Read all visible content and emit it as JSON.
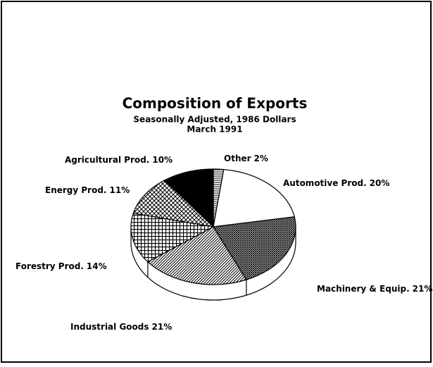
{
  "chart_data": {
    "type": "pie",
    "title": "Composition of Exports",
    "subtitle": [
      "Seasonally Adjusted, 1986 Dollars",
      "March 1991"
    ],
    "categories": [
      "Other",
      "Automotive Prod.",
      "Machinery & Equip.",
      "Industrial Goods",
      "Forestry Prod.",
      "Energy Prod.",
      "Agricultural Prod."
    ],
    "values": [
      2,
      20,
      21,
      21,
      14,
      11,
      10
    ],
    "value_labels": [
      "2%",
      "20%",
      "21%",
      "21%",
      "14%",
      "11%",
      "10%"
    ],
    "patterns": [
      "hlines",
      "white",
      "dense",
      "diag",
      "grid",
      "crosshatch",
      "black"
    ]
  }
}
